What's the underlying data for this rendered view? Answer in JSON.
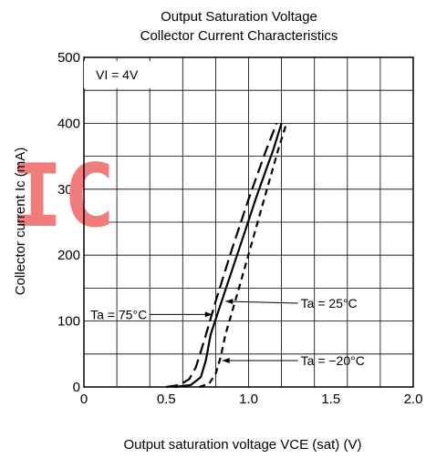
{
  "chart_data": {
    "type": "line",
    "title": "Output Saturation Voltage",
    "subtitle": "Collector Current Characteristics",
    "xlabel": "Output saturation voltage  VCE (sat) (V)",
    "ylabel": "Collector current  Ic (mA)",
    "xlim": [
      0,
      2.0
    ],
    "ylim": [
      0,
      500
    ],
    "x_ticks": [
      "0",
      "0.5",
      "1.0",
      "1.5",
      "2.0"
    ],
    "y_ticks": [
      "0",
      "100",
      "200",
      "300",
      "400",
      "500"
    ],
    "grid": true,
    "condition_label": "VI = 4V",
    "watermark": "IC",
    "series": [
      {
        "name": "Ta = 75°C",
        "style": "long-dash",
        "points": [
          [
            0.5,
            0
          ],
          [
            0.58,
            3
          ],
          [
            0.64,
            12
          ],
          [
            0.68,
            30
          ],
          [
            0.73,
            70
          ],
          [
            0.8,
            130
          ],
          [
            0.9,
            210
          ],
          [
            1.0,
            285
          ],
          [
            1.1,
            355
          ],
          [
            1.17,
            400
          ]
        ]
      },
      {
        "name": "Ta = 25°C",
        "style": "solid",
        "points": [
          [
            0.55,
            0
          ],
          [
            0.65,
            3
          ],
          [
            0.71,
            15
          ],
          [
            0.74,
            40
          ],
          [
            0.77,
            80
          ],
          [
            0.85,
            140
          ],
          [
            0.95,
            215
          ],
          [
            1.05,
            290
          ],
          [
            1.15,
            360
          ],
          [
            1.2,
            400
          ]
        ]
      },
      {
        "name": "Ta = −20°C",
        "style": "short-dash",
        "points": [
          [
            0.7,
            0
          ],
          [
            0.76,
            5
          ],
          [
            0.8,
            20
          ],
          [
            0.83,
            45
          ],
          [
            0.86,
            80
          ],
          [
            0.93,
            140
          ],
          [
            1.01,
            210
          ],
          [
            1.1,
            290
          ],
          [
            1.18,
            360
          ],
          [
            1.23,
            400
          ]
        ]
      }
    ],
    "annotations": [
      {
        "text": "Ta = 25°C",
        "series": "Ta = 25°C",
        "at": [
          0.86,
          130
        ],
        "label_at": [
          1.3,
          127
        ]
      },
      {
        "text": "Ta = 75°C",
        "series": "Ta = 75°C",
        "at": [
          0.78,
          110
        ],
        "label_at": [
          0.4,
          110
        ]
      },
      {
        "text": "Ta = −20°C",
        "series": "Ta = −20°C",
        "at": [
          0.84,
          40
        ],
        "label_at": [
          1.3,
          40
        ]
      }
    ]
  },
  "colors": {
    "axis": "#000000",
    "grid": "#000000",
    "line": "#000000",
    "watermark": "#f07c7c"
  }
}
